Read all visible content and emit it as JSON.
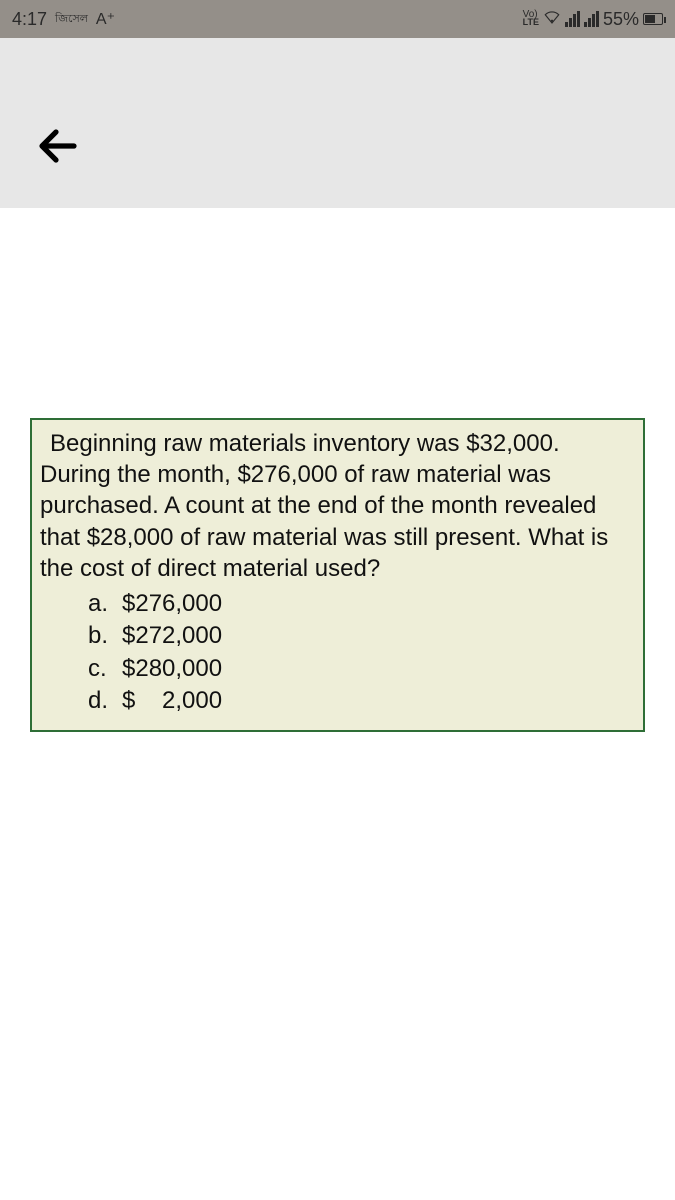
{
  "status": {
    "time": "4:17",
    "carrier_small": "জিসেল",
    "letter": "A⁺",
    "volte_top": "Vo)",
    "volte_bot": "LTE",
    "battery_percent": "55%",
    "battery_fill_pct": 55
  },
  "question": {
    "box_border_color": "#2e6e36",
    "box_background": "#eeeed8",
    "text_color": "#111111",
    "fontsize": 24,
    "prompt": "Beginning raw materials inventory was $32,000. During the month, $276,000 of raw material was purchased.  A count at the end of the month revealed that $28,000 of raw material was still present.  What is the cost of direct material used?",
    "options": [
      {
        "letter": "a.",
        "amount": "$276,000"
      },
      {
        "letter": "b.",
        "amount": "$272,000"
      },
      {
        "letter": "c.",
        "amount": "$280,000"
      },
      {
        "letter": "d.",
        "amount": "$    2,000"
      }
    ]
  },
  "colors": {
    "status_bar_bg": "#948f89",
    "header_bg": "#e7e7e7",
    "page_bg": "#ffffff",
    "back_arrow": "#000000"
  }
}
